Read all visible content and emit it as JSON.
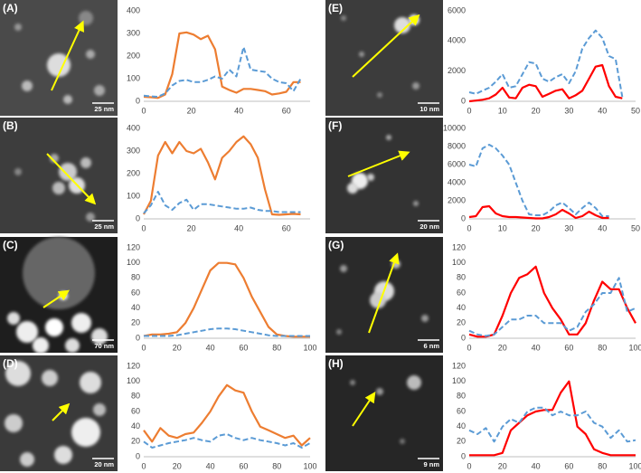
{
  "chart_data": [
    {
      "type": "line",
      "label": "(A)",
      "scale_bar": "25 nm",
      "xlim": [
        0,
        70
      ],
      "xticks": [
        0,
        20,
        40,
        60
      ],
      "ylim": [
        0,
        400
      ],
      "yticks": [
        0,
        100,
        200,
        300,
        400
      ],
      "x": [
        0,
        3,
        6,
        9,
        12,
        15,
        18,
        21,
        24,
        27,
        30,
        33,
        36,
        39,
        42,
        45,
        48,
        51,
        54,
        57,
        60,
        63,
        66
      ],
      "series": [
        {
          "color": "#ed7d31",
          "dashed": false,
          "values": [
            20,
            18,
            15,
            30,
            120,
            300,
            305,
            295,
            275,
            290,
            230,
            65,
            50,
            38,
            55,
            55,
            50,
            45,
            30,
            35,
            42,
            85,
            85
          ]
        },
        {
          "color": "#5b9bd5",
          "dashed": true,
          "values": [
            25,
            22,
            20,
            35,
            70,
            90,
            95,
            85,
            85,
            95,
            110,
            100,
            140,
            110,
            240,
            140,
            135,
            130,
            100,
            85,
            80,
            45,
            100
          ]
        }
      ]
    },
    {
      "type": "line",
      "label": "(B)",
      "scale_bar": "25 nm",
      "xlim": [
        0,
        70
      ],
      "xticks": [
        0,
        20,
        40,
        60
      ],
      "ylim": [
        0,
        400
      ],
      "yticks": [
        0,
        100,
        200,
        300,
        400
      ],
      "x": [
        0,
        3,
        6,
        9,
        12,
        15,
        18,
        21,
        24,
        27,
        30,
        33,
        36,
        39,
        42,
        45,
        48,
        51,
        54,
        57,
        60,
        63,
        66
      ],
      "series": [
        {
          "color": "#ed7d31",
          "dashed": false,
          "values": [
            20,
            80,
            280,
            340,
            290,
            340,
            300,
            290,
            310,
            250,
            175,
            270,
            300,
            340,
            365,
            330,
            270,
            130,
            20,
            18,
            20,
            22,
            20
          ]
        },
        {
          "color": "#5b9bd5",
          "dashed": true,
          "values": [
            25,
            60,
            120,
            60,
            40,
            70,
            85,
            40,
            65,
            65,
            60,
            55,
            50,
            45,
            45,
            50,
            40,
            35,
            35,
            30,
            30,
            30,
            30
          ]
        }
      ]
    },
    {
      "type": "line",
      "label": "(C)",
      "scale_bar": "70 nm",
      "xlim": [
        0,
        100
      ],
      "xticks": [
        0,
        20,
        40,
        60,
        80,
        100
      ],
      "ylim": [
        0,
        120
      ],
      "yticks": [
        0,
        20,
        40,
        60,
        80,
        100,
        120
      ],
      "x": [
        0,
        5,
        10,
        15,
        20,
        25,
        30,
        35,
        40,
        45,
        50,
        55,
        60,
        65,
        70,
        75,
        80,
        85,
        90,
        95,
        100
      ],
      "series": [
        {
          "color": "#ed7d31",
          "dashed": false,
          "values": [
            3,
            5,
            5,
            6,
            8,
            20,
            40,
            65,
            90,
            100,
            100,
            98,
            80,
            55,
            35,
            15,
            5,
            3,
            2,
            2,
            2
          ]
        },
        {
          "color": "#5b9bd5",
          "dashed": true,
          "values": [
            3,
            3,
            3,
            3,
            4,
            6,
            8,
            10,
            12,
            13,
            13,
            12,
            10,
            8,
            6,
            4,
            3,
            3,
            3,
            3,
            3
          ]
        }
      ]
    },
    {
      "type": "line",
      "label": "(D)",
      "scale_bar": "20 nm",
      "xlim": [
        0,
        100
      ],
      "xticks": [
        0,
        20,
        40,
        60,
        80,
        100
      ],
      "ylim": [
        0,
        120
      ],
      "yticks": [
        0,
        20,
        40,
        60,
        80,
        100,
        120
      ],
      "x": [
        0,
        5,
        10,
        15,
        20,
        25,
        30,
        35,
        40,
        45,
        50,
        55,
        60,
        65,
        70,
        75,
        80,
        85,
        90,
        95,
        100
      ],
      "series": [
        {
          "color": "#ed7d31",
          "dashed": false,
          "values": [
            35,
            20,
            38,
            28,
            25,
            30,
            32,
            45,
            60,
            80,
            95,
            88,
            85,
            60,
            40,
            35,
            30,
            25,
            28,
            15,
            25
          ]
        },
        {
          "color": "#5b9bd5",
          "dashed": true,
          "values": [
            20,
            12,
            15,
            18,
            20,
            22,
            25,
            22,
            20,
            28,
            30,
            25,
            22,
            25,
            22,
            20,
            18,
            15,
            18,
            12,
            18
          ]
        }
      ]
    },
    {
      "type": "line",
      "label": "(E)",
      "scale_bar": "10 nm",
      "xlim": [
        0,
        50
      ],
      "xticks": [
        0,
        10,
        20,
        30,
        40,
        50
      ],
      "ylim": [
        0,
        6000
      ],
      "yticks": [
        0,
        2000,
        4000,
        6000
      ],
      "x": [
        0,
        2,
        4,
        6,
        8,
        10,
        12,
        14,
        16,
        18,
        20,
        22,
        24,
        26,
        28,
        30,
        32,
        34,
        36,
        38,
        40,
        42,
        44,
        46
      ],
      "series": [
        {
          "color": "#ff0000",
          "dashed": false,
          "values": [
            0,
            50,
            100,
            200,
            450,
            900,
            250,
            200,
            900,
            1100,
            1000,
            300,
            500,
            700,
            800,
            200,
            400,
            700,
            1500,
            2300,
            2400,
            1000,
            300,
            200
          ]
        },
        {
          "color": "#5b9bd5",
          "dashed": true,
          "values": [
            600,
            500,
            700,
            900,
            1300,
            1800,
            900,
            1000,
            1800,
            2600,
            2500,
            1500,
            1300,
            1600,
            1800,
            1200,
            2000,
            3500,
            4200,
            4700,
            4200,
            3000,
            2800,
            300
          ]
        }
      ]
    },
    {
      "type": "line",
      "label": "(F)",
      "scale_bar": "20 nm",
      "xlim": [
        0,
        50
      ],
      "xticks": [
        0,
        10,
        20,
        30,
        40,
        50
      ],
      "ylim": [
        0,
        10000
      ],
      "yticks": [
        0,
        2000,
        4000,
        6000,
        8000,
        10000
      ],
      "x": [
        0,
        2,
        4,
        6,
        8,
        10,
        12,
        14,
        16,
        18,
        20,
        22,
        24,
        26,
        28,
        30,
        32,
        34,
        36,
        38,
        40,
        42
      ],
      "series": [
        {
          "color": "#5b9bd5",
          "dashed": true,
          "values": [
            6000,
            5800,
            7800,
            8200,
            7800,
            7000,
            6000,
            4000,
            2000,
            500,
            400,
            400,
            800,
            1500,
            1800,
            1200,
            500,
            1200,
            1800,
            1200,
            300,
            300
          ]
        },
        {
          "color": "#ff0000",
          "dashed": false,
          "values": [
            200,
            300,
            1300,
            1400,
            600,
            300,
            200,
            200,
            150,
            100,
            50,
            50,
            200,
            500,
            1000,
            600,
            100,
            300,
            800,
            400,
            100,
            100
          ]
        }
      ]
    },
    {
      "type": "line",
      "label": "(G)",
      "scale_bar": "6 nm",
      "xlim": [
        0,
        100
      ],
      "xticks": [
        0,
        20,
        40,
        60,
        80,
        100
      ],
      "ylim": [
        0,
        120
      ],
      "yticks": [
        0,
        20,
        40,
        60,
        80,
        100,
        120
      ],
      "x": [
        0,
        5,
        10,
        15,
        20,
        25,
        30,
        35,
        40,
        45,
        50,
        55,
        60,
        65,
        70,
        75,
        80,
        85,
        90,
        95,
        100
      ],
      "series": [
        {
          "color": "#ff0000",
          "dashed": false,
          "values": [
            5,
            2,
            2,
            5,
            30,
            60,
            80,
            85,
            95,
            60,
            40,
            25,
            5,
            5,
            20,
            50,
            75,
            65,
            65,
            40,
            20
          ]
        },
        {
          "color": "#5b9bd5",
          "dashed": true,
          "values": [
            10,
            5,
            3,
            5,
            15,
            25,
            25,
            30,
            30,
            20,
            20,
            20,
            10,
            15,
            35,
            45,
            60,
            60,
            80,
            35,
            40
          ]
        }
      ]
    },
    {
      "type": "line",
      "label": "(H)",
      "scale_bar": "9 nm",
      "xlim": [
        0,
        100
      ],
      "xticks": [
        0,
        20,
        40,
        60,
        80,
        100
      ],
      "ylim": [
        0,
        120
      ],
      "yticks": [
        0,
        20,
        40,
        60,
        80,
        100,
        120
      ],
      "x": [
        0,
        5,
        10,
        15,
        20,
        25,
        30,
        35,
        40,
        45,
        50,
        55,
        60,
        65,
        70,
        75,
        80,
        85,
        90,
        95,
        100
      ],
      "series": [
        {
          "color": "#ff0000",
          "dashed": false,
          "values": [
            2,
            2,
            2,
            2,
            5,
            35,
            45,
            55,
            60,
            62,
            62,
            85,
            100,
            40,
            30,
            10,
            5,
            2,
            2,
            2,
            2
          ]
        },
        {
          "color": "#5b9bd5",
          "dashed": true,
          "values": [
            35,
            30,
            38,
            20,
            40,
            50,
            45,
            60,
            65,
            65,
            55,
            60,
            55,
            55,
            60,
            45,
            40,
            25,
            35,
            20,
            22
          ]
        }
      ]
    }
  ]
}
